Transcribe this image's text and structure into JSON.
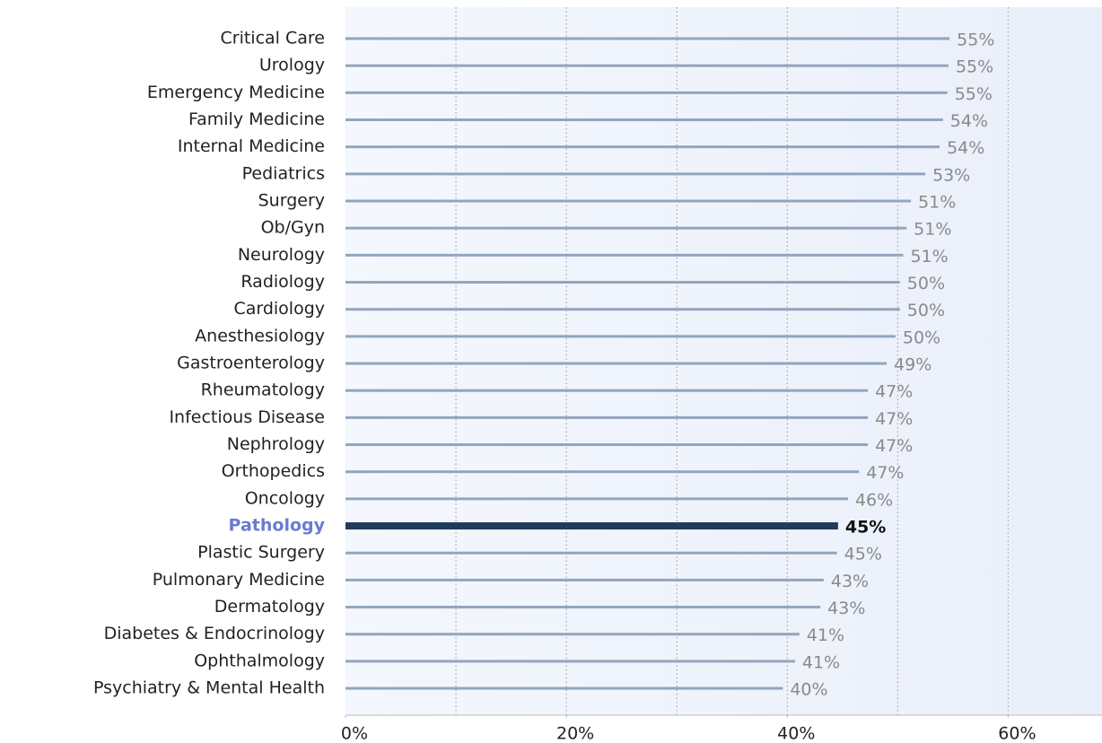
{
  "chart_data": {
    "type": "hbar",
    "categories": [
      "Critical Care",
      "Urology",
      "Emergency Medicine",
      "Family Medicine",
      "Internal Medicine",
      "Pediatrics",
      "Surgery",
      "Ob/Gyn",
      "Neurology",
      "Radiology",
      "Cardiology",
      "Anesthesiology",
      "Gastroenterology",
      "Rheumatology",
      "Infectious Disease",
      "Nephrology",
      "Orthopedics",
      "Oncology",
      "Pathology",
      "Plastic Surgery",
      "Pulmonary Medicine",
      "Dermatology",
      "Diabetes & Endocrinology",
      "Ophthalmology",
      "Psychiatry & Mental Health"
    ],
    "values": [
      54.7,
      54.6,
      54.5,
      54.1,
      53.8,
      52.5,
      51.2,
      50.8,
      50.5,
      50.2,
      50.2,
      49.8,
      49.0,
      47.3,
      47.3,
      47.3,
      46.5,
      45.5,
      44.6,
      44.5,
      43.3,
      43.0,
      41.1,
      40.7,
      39.6
    ],
    "value_labels": [
      "55%",
      "55%",
      "55%",
      "54%",
      "54%",
      "53%",
      "51%",
      "51%",
      "51%",
      "50%",
      "50%",
      "50%",
      "49%",
      "47%",
      "47%",
      "47%",
      "47%",
      "46%",
      "45%",
      "45%",
      "43%",
      "43%",
      "41%",
      "41%",
      "40%"
    ],
    "colors": [
      "#93a5be",
      "#93a5be",
      "#93a5be",
      "#93a5be",
      "#93a5be",
      "#93a5be",
      "#93a5be",
      "#93a5be",
      "#93a5be",
      "#93a5be",
      "#93a5be",
      "#93a5be",
      "#93a5be",
      "#93a5be",
      "#93a5be",
      "#93a5be",
      "#93a5be",
      "#93a5be",
      "#1f3a5c",
      "#93a5be",
      "#93a5be",
      "#93a5be",
      "#93a5be",
      "#93a5be",
      "#93a5be"
    ],
    "label_colors": [
      "#222",
      "#222",
      "#222",
      "#222",
      "#222",
      "#222",
      "#222",
      "#222",
      "#222",
      "#222",
      "#222",
      "#222",
      "#222",
      "#222",
      "#222",
      "#222",
      "#222",
      "#222",
      "#6b7bd0",
      "#222",
      "#222",
      "#222",
      "#222",
      "#222",
      "#222"
    ],
    "value_label_colors": [
      "#8a8a8a",
      "#8a8a8a",
      "#8a8a8a",
      "#8a8a8a",
      "#8a8a8a",
      "#8a8a8a",
      "#8a8a8a",
      "#8a8a8a",
      "#8a8a8a",
      "#8a8a8a",
      "#8a8a8a",
      "#8a8a8a",
      "#8a8a8a",
      "#8a8a8a",
      "#8a8a8a",
      "#8a8a8a",
      "#8a8a8a",
      "#8a8a8a",
      "#111",
      "#8a8a8a",
      "#8a8a8a",
      "#8a8a8a",
      "#8a8a8a",
      "#8a8a8a",
      "#8a8a8a"
    ],
    "xlim": [
      0,
      68.5
    ],
    "xticks": [
      {
        "value": 0,
        "label": "0%"
      },
      {
        "value": 20,
        "label": "20%"
      },
      {
        "value": 40,
        "label": "40%"
      },
      {
        "value": 60,
        "label": "60%"
      }
    ],
    "grid_xticks": [
      10,
      20,
      30,
      40,
      50,
      60
    ],
    "grid": true
  }
}
